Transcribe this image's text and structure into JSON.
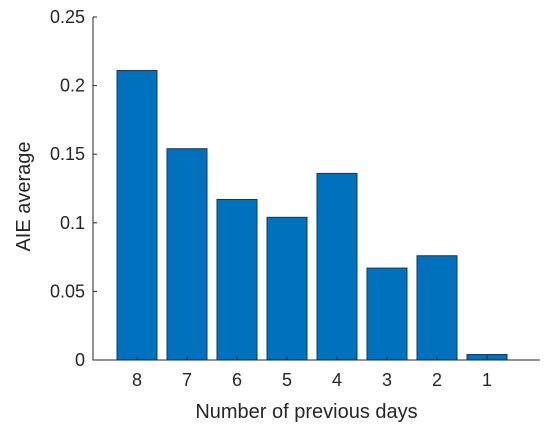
{
  "chart_data": {
    "type": "bar",
    "title": "",
    "xlabel": "Number of previous days",
    "ylabel": "AIE average",
    "categories": [
      "8",
      "7",
      "6",
      "5",
      "4",
      "3",
      "2",
      "1"
    ],
    "values": [
      0.211,
      0.154,
      0.117,
      0.104,
      0.136,
      0.067,
      0.076,
      0.004
    ],
    "ylim": [
      0,
      0.25
    ],
    "yticks": [
      "0",
      "0.05",
      "0.1",
      "0.15",
      "0.2",
      "0.25"
    ],
    "ytick_values": [
      0,
      0.05,
      0.1,
      0.15,
      0.2,
      0.25
    ],
    "grid": false,
    "bar_color": "#0072bd"
  }
}
